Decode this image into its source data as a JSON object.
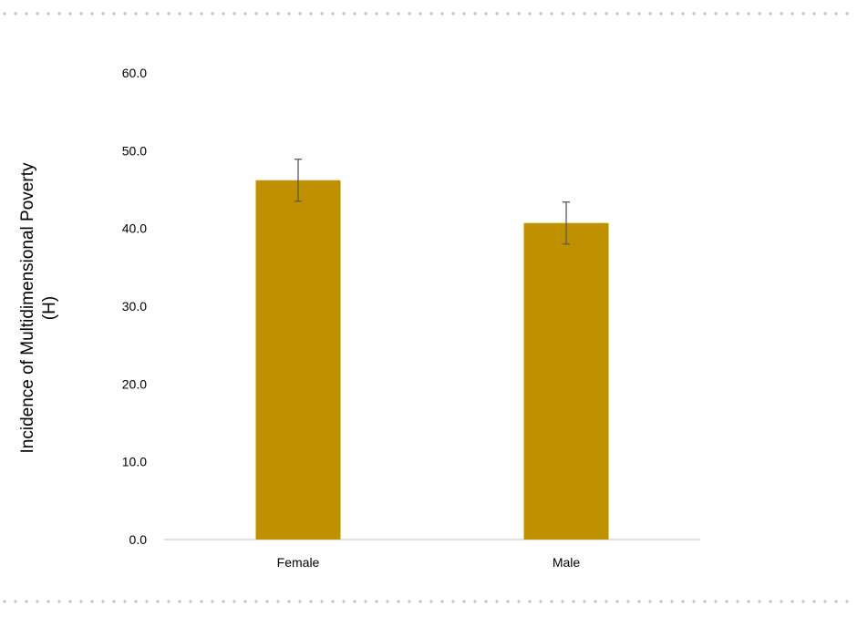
{
  "colors": {
    "bar": "#BF9000",
    "axis": "#BFBFBF",
    "error_bar": "#595959",
    "dotted_border": "#C9C3B6"
  },
  "chart_data": {
    "type": "bar",
    "categories": [
      "Female",
      "Male"
    ],
    "values": [
      46.2,
      40.7
    ],
    "error_bars": [
      {
        "low": 43.5,
        "high": 48.9
      },
      {
        "low": 38.0,
        "high": 43.4
      }
    ],
    "ylabel_line1": "Incidence of Multidimensional Poverty",
    "ylabel_line2": "(H)",
    "ylim": [
      0,
      60
    ],
    "yticks": [
      "0.0",
      "10.0",
      "20.0",
      "30.0",
      "40.0",
      "50.0",
      "60.0"
    ],
    "grid": false,
    "legend": "none"
  }
}
